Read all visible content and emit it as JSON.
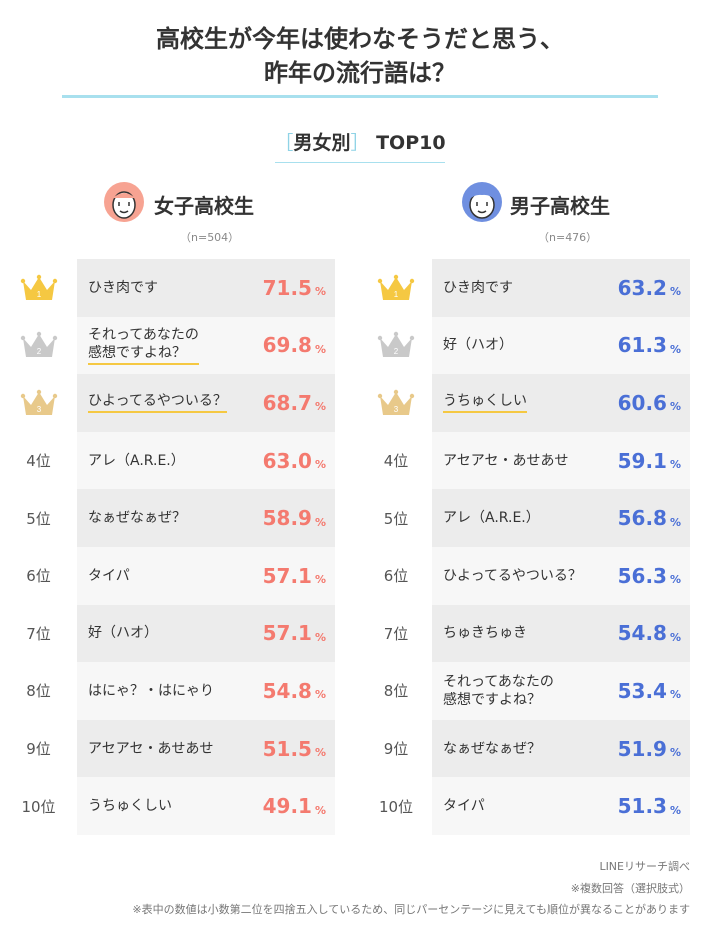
{
  "title": {
    "line1": "高校生が今年は使わなそうだと思う、",
    "line2": "昨年の流行語は？"
  },
  "subhead": {
    "bracket_open": "［",
    "label": "男女別",
    "bracket_close": "］",
    "suffix": "TOP10"
  },
  "colors": {
    "female_value": "#f47a6f",
    "male_value": "#4a6fd6",
    "gold": "#f5c842",
    "silver": "#c9c9c9",
    "bronze": "#e8c98a",
    "accent_line": "#a8e0ee"
  },
  "chart_data": [
    {
      "type": "table",
      "title": "女子高校生",
      "n": "（n=504）",
      "icon": "girl-face-icon",
      "unit": "%",
      "ranks": [
        {
          "rank": "1",
          "label": "ひき肉です",
          "value": 71.5,
          "value_text": "71.5",
          "highlight": false
        },
        {
          "rank": "2",
          "label": "それってあなたの\n感想ですよね？",
          "value": 69.8,
          "value_text": "69.8",
          "highlight": true
        },
        {
          "rank": "3",
          "label": "ひよってるやついる？",
          "value": 68.7,
          "value_text": "68.7",
          "highlight": true
        },
        {
          "rank": "4位",
          "label": "アレ（A.R.E.）",
          "value": 63.0,
          "value_text": "63.0",
          "highlight": false
        },
        {
          "rank": "5位",
          "label": "なぁぜなぁぜ？",
          "value": 58.9,
          "value_text": "58.9",
          "highlight": false
        },
        {
          "rank": "6位",
          "label": "タイパ",
          "value": 57.1,
          "value_text": "57.1",
          "highlight": false
        },
        {
          "rank": "7位",
          "label": "好（ハオ）",
          "value": 57.1,
          "value_text": "57.1",
          "highlight": false
        },
        {
          "rank": "8位",
          "label": "はにゃ？・はにゃり",
          "value": 54.8,
          "value_text": "54.8",
          "highlight": false
        },
        {
          "rank": "9位",
          "label": "アセアセ・あせあせ",
          "value": 51.5,
          "value_text": "51.5",
          "highlight": false
        },
        {
          "rank": "10位",
          "label": "うちゅくしい",
          "value": 49.1,
          "value_text": "49.1",
          "highlight": false
        }
      ]
    },
    {
      "type": "table",
      "title": "男子高校生",
      "n": "（n=476）",
      "icon": "boy-face-icon",
      "unit": "%",
      "ranks": [
        {
          "rank": "1",
          "label": "ひき肉です",
          "value": 63.2,
          "value_text": "63.2",
          "highlight": false
        },
        {
          "rank": "2",
          "label": "好（ハオ）",
          "value": 61.3,
          "value_text": "61.3",
          "highlight": false
        },
        {
          "rank": "3",
          "label": "うちゅくしい",
          "value": 60.6,
          "value_text": "60.6",
          "highlight": true
        },
        {
          "rank": "4位",
          "label": "アセアセ・あせあせ",
          "value": 59.1,
          "value_text": "59.1",
          "highlight": false
        },
        {
          "rank": "5位",
          "label": "アレ（A.R.E.）",
          "value": 56.8,
          "value_text": "56.8",
          "highlight": false
        },
        {
          "rank": "6位",
          "label": "ひよってるやついる？",
          "value": 56.3,
          "value_text": "56.3",
          "highlight": false
        },
        {
          "rank": "7位",
          "label": "ちゅきちゅき",
          "value": 54.8,
          "value_text": "54.8",
          "highlight": false
        },
        {
          "rank": "8位",
          "label": "それってあなたの\n感想ですよね？",
          "value": 53.4,
          "value_text": "53.4",
          "highlight": false
        },
        {
          "rank": "9位",
          "label": "なぁぜなぁぜ？",
          "value": 51.9,
          "value_text": "51.9",
          "highlight": false
        },
        {
          "rank": "10位",
          "label": "タイパ",
          "value": 51.3,
          "value_text": "51.3",
          "highlight": false
        }
      ]
    }
  ],
  "footer": {
    "source": "LINEリサーチ調べ",
    "note1": "※複数回答（選択肢式）",
    "note2": "※表中の数値は小数第二位を四捨五入しているため、同じパーセンテージに見えても順位が異なることがあります"
  }
}
